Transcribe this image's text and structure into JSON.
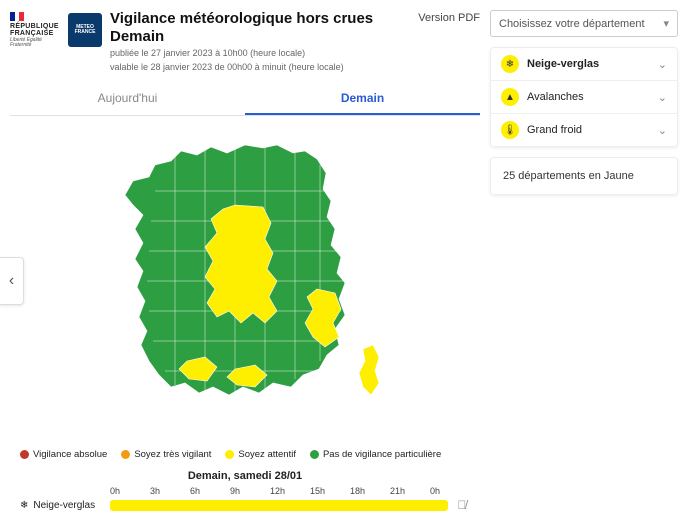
{
  "colors": {
    "green": "#2e9e42",
    "yellow": "#feee00",
    "orange": "#f39c12",
    "red": "#c0392b",
    "active_tab": "#2a5bd7",
    "meteo_bg": "#0a3a6b",
    "flag_blue": "#002395",
    "flag_white": "#ffffff",
    "flag_red": "#ed2939"
  },
  "header": {
    "rf_line1": "RÉPUBLIQUE",
    "rf_line2": "FRANÇAISE",
    "rf_tag": "Liberté Égalité Fraternité",
    "meteo_label": "METEO FRANCE",
    "title_line1": "Vigilance météorologique hors crues",
    "title_line2": "Demain",
    "published": "publiée le 27 janvier 2023 à 10h00 (heure locale)",
    "valid": "valable le 28 janvier 2023 de 00h00 à minuit (heure locale)",
    "pdf": "Version PDF"
  },
  "tabs": {
    "today": "Aujourd'hui",
    "tomorrow": "Demain"
  },
  "legend": {
    "l4": "Vigilance absolue",
    "l3": "Soyez très vigilant",
    "l2": "Soyez attentif",
    "l1": "Pas de vigilance particulière"
  },
  "timeline": {
    "title": "Demain, samedi 28/01",
    "hours": [
      "0h",
      "3h",
      "6h",
      "9h",
      "12h",
      "15h",
      "18h",
      "21h",
      "0h"
    ],
    "row_label": "Neige-verglas",
    "row_icon": "❄",
    "row_color": "#feee00"
  },
  "select": {
    "placeholder": "Choisissez votre département"
  },
  "hazards": [
    {
      "icon": "❄",
      "label": "Neige-verglas",
      "color": "#feee00",
      "bold": true
    },
    {
      "icon": "▲",
      "label": "Avalanches",
      "color": "#feee00",
      "bold": false
    },
    {
      "icon": "🌡",
      "label": "Grand froid",
      "color": "#feee00",
      "bold": false
    }
  ],
  "summary": "25 départements en Jaune"
}
